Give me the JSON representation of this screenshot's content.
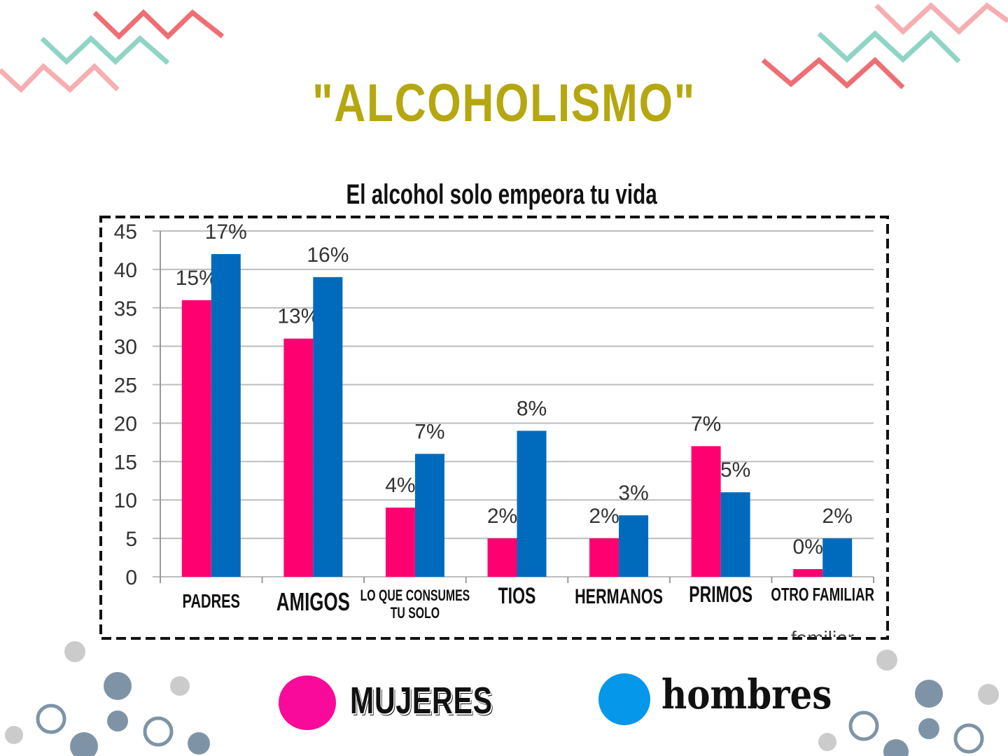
{
  "page_title": "\"ALCOHOLISMO\"",
  "colors": {
    "title": "#b5a70f",
    "mujeres": "#ff0070",
    "hombres": "#006bbd",
    "legend_mujeres_dot": "#fa0a9a",
    "legend_hombres_dot": "#0597ea",
    "zigzag_coral": "#ee6e74",
    "zigzag_pink": "#f6aeb0",
    "zigzag_teal": "#8fd4c5",
    "dot_slate": "#7e94a6",
    "dot_gray": "#cbcbcb"
  },
  "chart_data": {
    "type": "bar",
    "title": "El alcohol  solo empeora tu vida",
    "categories": [
      "PADRES",
      "AMIGOS",
      "LO QUE CONSUMES TU SOLO",
      "TIOS",
      "HERMANOS",
      "PRIMOS",
      "OTRO FAMILIAR"
    ],
    "series": [
      {
        "name": "MUJERES",
        "values": [
          36,
          31,
          9,
          5,
          5,
          17,
          1
        ],
        "labels": [
          "15%",
          "13%",
          "4%",
          "2%",
          "2%",
          "7%",
          "0%"
        ]
      },
      {
        "name": "hombres",
        "values": [
          42,
          39,
          16,
          19,
          8,
          11,
          5
        ],
        "labels": [
          "17%",
          "16%",
          "7%",
          "8%",
          "3%",
          "5%",
          "2%"
        ]
      }
    ],
    "ylim": [
      0,
      45
    ],
    "yticks": [
      0,
      5,
      10,
      15,
      20,
      25,
      30,
      35,
      40,
      45
    ],
    "grid": true,
    "xlabel": "",
    "ylabel": "",
    "overflow_text": "familiar"
  },
  "legend": {
    "mujeres_label": "MUJERES",
    "hombres_label": "hombres"
  }
}
